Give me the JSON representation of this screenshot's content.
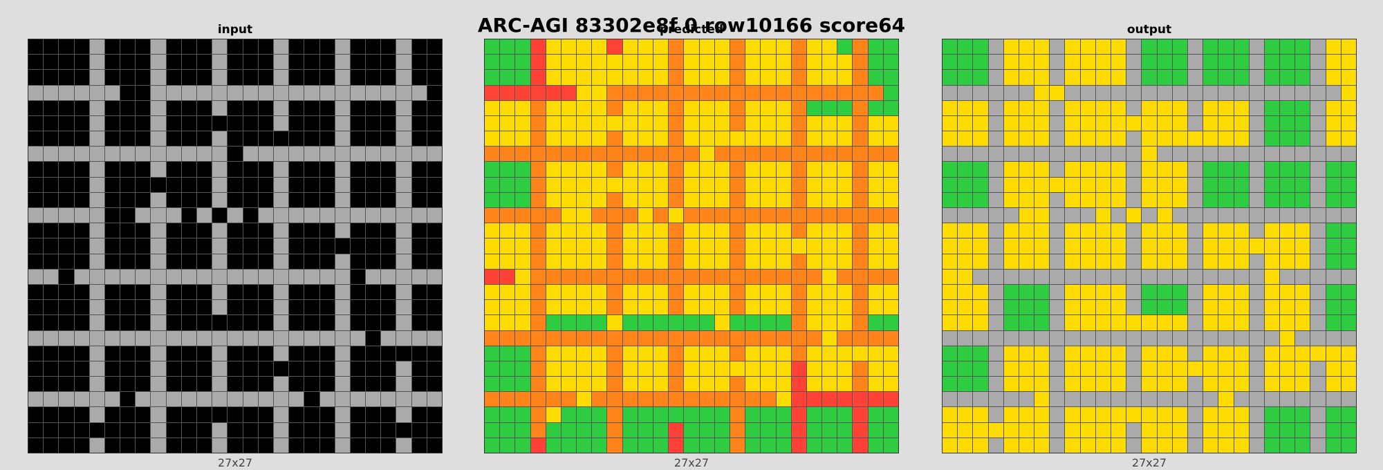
{
  "title": "ARC-AGI 83302e8f 0 row10166 score64",
  "palette": {
    "0": "#000000",
    "2": "#ff4136",
    "3": "#2ecc40",
    "4": "#ffdc00",
    "5": "#aaaaaa",
    "7": "#ff851b"
  },
  "panels": [
    {
      "title": "input",
      "caption": "27x27",
      "rows": [
        "000050005000500050005000500",
        "000050005000500050005000500",
        "000050005000500050005000500",
        "555555005555555555555555550",
        "000050005000500050005000500",
        "000050005000000050005000500",
        "000050005000500000005000500",
        "555555555555505555555555555",
        "000050005000500050005000500",
        "000050000000500050005000500",
        "000050005000500050005000500",
        "555550055505050555555555555",
        "000050005000500050005000500",
        "000050005000500050000000500",
        "000050005000500050005000500",
        "550555555555555555555055555",
        "000050005000500050005000500",
        "000050005000500050005000500",
        "000050005000000050005000500",
        "555555555555555555555505555",
        "000050005000500050005000000",
        "000050005000500000005000500",
        "000050005000500050005000500",
        "555555055555555555055555555",
        "000050005000000050005000500",
        "000000005000500050005000000",
        "000050005000500050005000500"
      ]
    },
    {
      "title": "predicted",
      "caption": "27x27",
      "rows": [
        "333244442444744474447443733",
        "333244444444744474447444733",
        "333244444444744474447444733",
        "222222447777777777777777773",
        "444744447444744474447333733",
        "444744444444744474447444744",
        "444744447444744444447444744",
        "777777777777774777777777777",
        "333744447444744474447444744",
        "333744444444744474447444744",
        "333744447444744474447444744",
        "777774477747477777777777777",
        "444744447444744474447444744",
        "444744447444744474444444744",
        "444744447444744474447444744",
        "224777777777777777777747777",
        "444744447444744474447444744",
        "444744447444744474447444744",
        "444733334333333433337444733",
        "777777777777777777777747777",
        "333744447444744474447444444",
        "333744447444744444442444744",
        "333744447444744474442444744",
        "777777477777777777742222222",
        "333743337333333373332333233",
        "333733337333233373332333233",
        "333233337333233373332333233"
      ]
    },
    {
      "title": "output",
      "caption": "27x27",
      "rows": [
        "333544454444533353335333544",
        "333544454444533353335333544",
        "333544454444533353335333544",
        "555555445555555555555555554",
        "444544454444544454445333544",
        "444544454444444454445333544",
        "444544454444544444445333544",
        "555555555555545555555555555",
        "333544454444544453335333533",
        "333544444444544453335333533",
        "333544454444544453335333533",
        "555554455545454555555555555",
        "444544454444544454445444533",
        "444544454444544454444444533",
        "444544454444544454445444533",
        "445555555555555555555455555",
        "444533354444533354445444533",
        "444533354444533354445444533",
        "444533354444444454445444533",
        "555555555555555555555545555",
        "333544454444544454445444444",
        "333544454444544444445444544",
        "333544454444544454445444544",
        "555555455555555555455555555",
        "444544454444444454445333533",
        "444444454444544454445333533",
        "444544454444544454445333533"
      ]
    }
  ]
}
